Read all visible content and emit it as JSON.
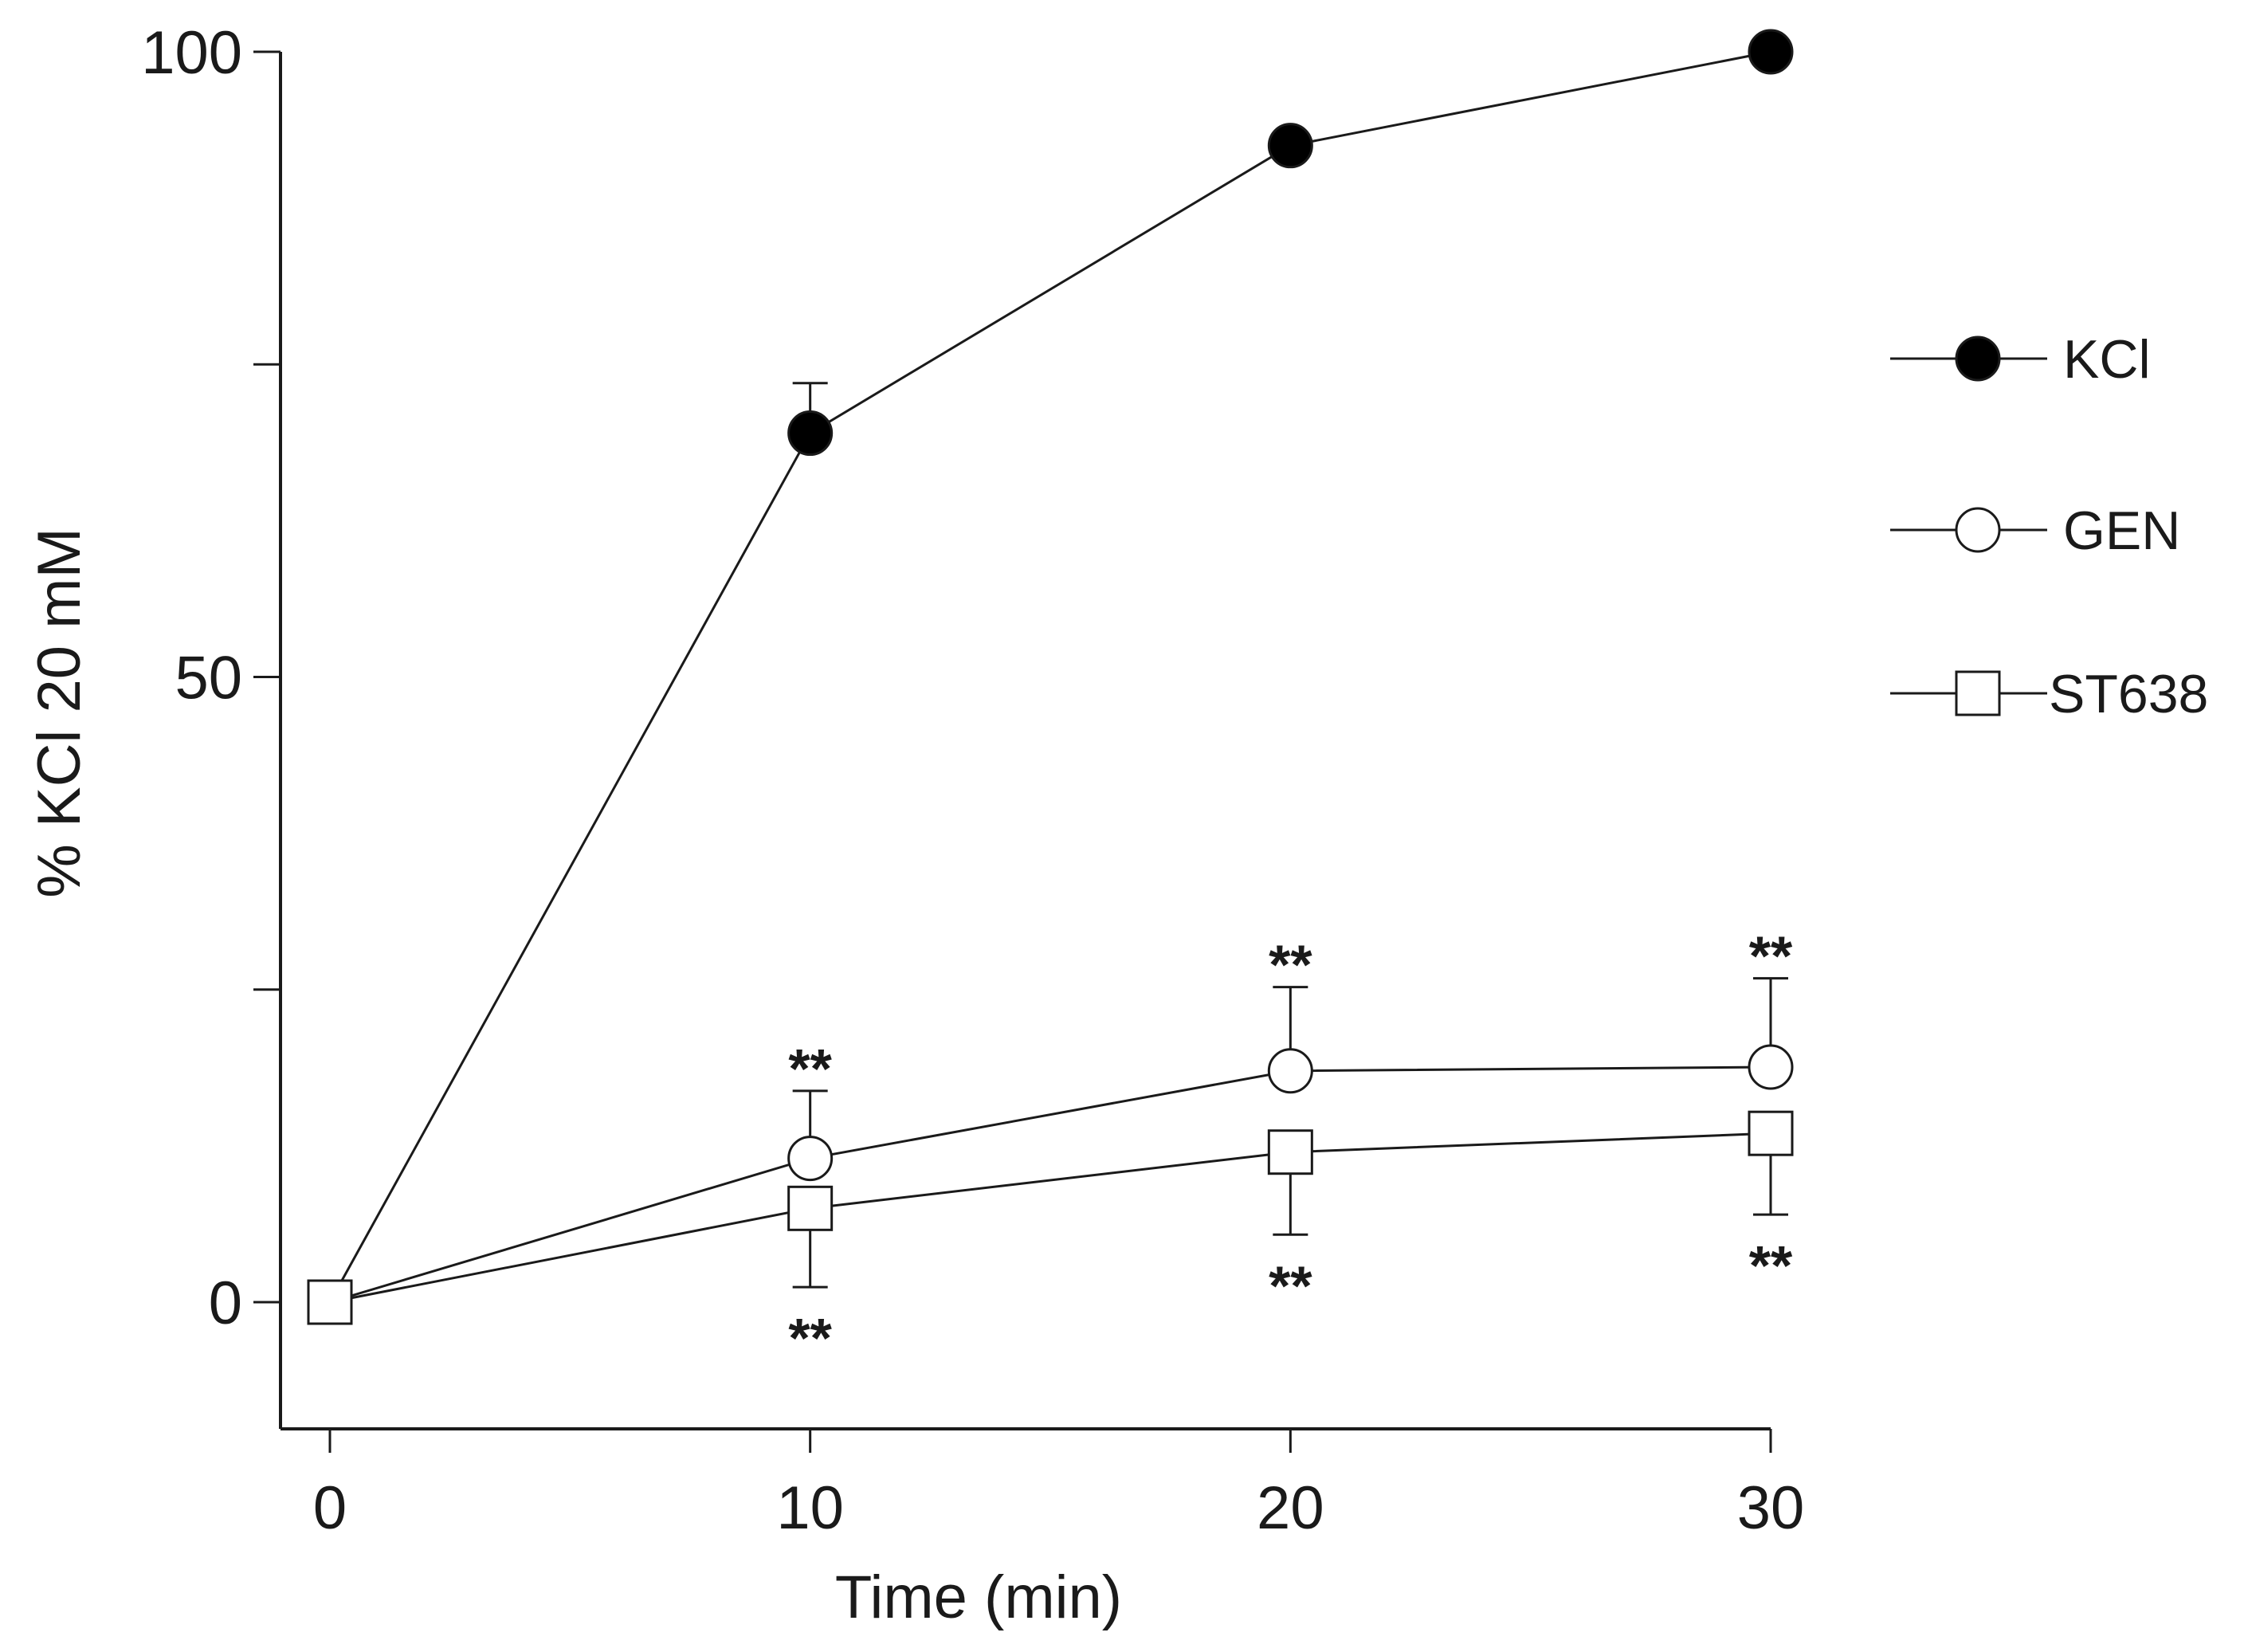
{
  "chart_data": {
    "type": "line",
    "title": "",
    "xlabel": "Time (min)",
    "ylabel": "% KCl 20 mM",
    "x": [
      0,
      10,
      20,
      30
    ],
    "xlim": [
      -1,
      31
    ],
    "ylim": [
      -10,
      100
    ],
    "x_ticks": [
      0,
      10,
      20,
      30
    ],
    "y_ticks": [
      0,
      25,
      50,
      75,
      100
    ],
    "y_tick_labels": [
      "0",
      "",
      "50",
      "",
      "100"
    ],
    "grid": false,
    "legend_position": "right",
    "series": [
      {
        "name": "KCl",
        "marker": "filled-circle",
        "values": [
          0,
          69.5,
          92.5,
          100
        ],
        "error": [
          0,
          4,
          0,
          0
        ],
        "error_direction": "up",
        "significance": [
          "",
          "",
          "",
          ""
        ]
      },
      {
        "name": "GEN",
        "marker": "open-circle",
        "values": [
          0,
          11.5,
          18.5,
          18.8
        ],
        "error": [
          0,
          5.4,
          6.7,
          7.1
        ],
        "error_direction": "up",
        "significance": [
          "",
          "**",
          "**",
          "**"
        ]
      },
      {
        "name": "ST638",
        "marker": "open-square",
        "values": [
          0,
          7.5,
          12,
          13.5
        ],
        "error": [
          0,
          6.3,
          6.6,
          6.5
        ],
        "error_direction": "down",
        "significance": [
          "",
          "**",
          "**",
          "**"
        ]
      }
    ],
    "colors": {
      "line": "#1a1a1a",
      "filled": "#000000",
      "open": "#ffffff"
    }
  }
}
